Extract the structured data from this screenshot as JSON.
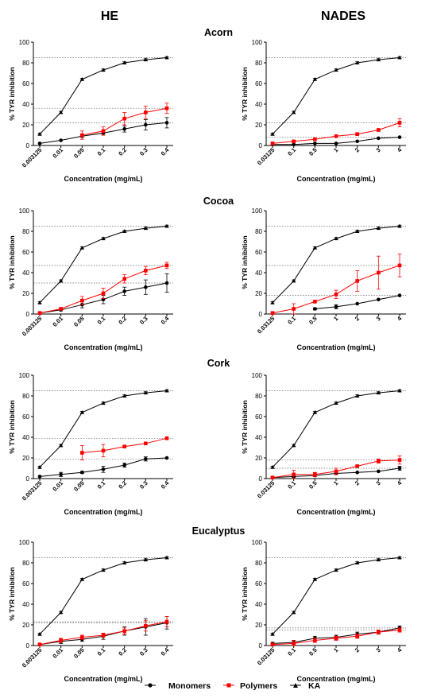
{
  "column_titles": [
    "HE",
    "NADES"
  ],
  "row_titles": [
    "Acorn",
    "Cocoa",
    "Cork",
    "Eucalyptus"
  ],
  "legend": {
    "position": "bottom",
    "items": [
      {
        "label": "Monomers",
        "color": "#000000",
        "marker": "circle"
      },
      {
        "label": "Polymers",
        "color": "#ff0000",
        "marker": "square"
      },
      {
        "label": "KA",
        "color": "#000000",
        "marker": "triangle"
      }
    ]
  },
  "chart_data": [
    {
      "type": "line",
      "panel": "HE",
      "row": "Acorn",
      "xlabel": "Concentration (mg/mL)",
      "ylabel": "% TYR inhibition",
      "ylim": [
        0,
        100
      ],
      "yticks": [
        0,
        20,
        40,
        60,
        80,
        100
      ],
      "categories": [
        "0.003125",
        "0.01",
        "0.05",
        "0.1",
        "0.2",
        "0.3",
        "0.4"
      ],
      "series": [
        {
          "name": "Monomers",
          "color": "#000000",
          "marker": "circle",
          "values": [
            2,
            5,
            9,
            12,
            16,
            20,
            22
          ],
          "errors": [
            0,
            0,
            1,
            2,
            3,
            5,
            5
          ]
        },
        {
          "name": "Polymers",
          "color": "#ff0000",
          "marker": "square",
          "values": [
            null,
            null,
            10,
            14,
            26,
            32,
            36
          ],
          "errors": [
            null,
            null,
            4,
            4,
            6,
            6,
            5
          ]
        },
        {
          "name": "KA",
          "color": "#000000",
          "marker": "triangle",
          "values": [
            11,
            32,
            64,
            73,
            80,
            83,
            85
          ],
          "errors": [
            1,
            1,
            1,
            1,
            1,
            1,
            1
          ]
        }
      ],
      "reference_lines": [
        85,
        36,
        22
      ]
    },
    {
      "type": "line",
      "panel": "NADES",
      "row": "Acorn",
      "xlabel": "Concentration (mg/mL)",
      "ylabel": "% TYR inhibition",
      "ylim": [
        0,
        100
      ],
      "yticks": [
        0,
        20,
        40,
        60,
        80,
        100
      ],
      "categories": [
        "0.03125",
        "0.1",
        "0.5",
        "1",
        "2",
        "3",
        "4"
      ],
      "series": [
        {
          "name": "Monomers",
          "color": "#000000",
          "marker": "circle",
          "values": [
            1,
            1,
            2,
            2,
            4,
            7,
            8
          ],
          "errors": [
            0,
            0,
            0,
            0,
            0,
            0,
            0
          ]
        },
        {
          "name": "Polymers",
          "color": "#ff0000",
          "marker": "square",
          "values": [
            2,
            4,
            6,
            9,
            11,
            15,
            22
          ],
          "errors": [
            1,
            1,
            0,
            0,
            1,
            1,
            4
          ]
        },
        {
          "name": "KA",
          "color": "#000000",
          "marker": "triangle",
          "values": [
            11,
            32,
            64,
            73,
            80,
            83,
            85
          ],
          "errors": [
            1,
            1,
            1,
            1,
            1,
            1,
            1
          ]
        }
      ],
      "reference_lines": [
        85,
        22,
        8
      ]
    },
    {
      "type": "line",
      "panel": "HE",
      "row": "Cocoa",
      "xlabel": "Concentration (mg/mL)",
      "ylabel": "% TYR inhibition",
      "ylim": [
        0,
        100
      ],
      "yticks": [
        0,
        20,
        40,
        60,
        80,
        100
      ],
      "categories": [
        "0.003125",
        "0.01",
        "0.05",
        "0.1",
        "0.2",
        "0.3",
        "0.4"
      ],
      "series": [
        {
          "name": "Monomers",
          "color": "#000000",
          "marker": "circle",
          "values": [
            1,
            4,
            9,
            14,
            22,
            26,
            30
          ],
          "errors": [
            0,
            1,
            3,
            4,
            4,
            7,
            9
          ]
        },
        {
          "name": "Polymers",
          "color": "#ff0000",
          "marker": "square",
          "values": [
            1,
            5,
            13,
            20,
            34,
            42,
            47
          ],
          "errors": [
            0,
            1,
            4,
            5,
            4,
            4,
            3
          ]
        },
        {
          "name": "KA",
          "color": "#000000",
          "marker": "triangle",
          "values": [
            11,
            32,
            64,
            73,
            80,
            83,
            85
          ],
          "errors": [
            1,
            1,
            1,
            1,
            1,
            1,
            1
          ]
        }
      ],
      "reference_lines": [
        85,
        47,
        30
      ]
    },
    {
      "type": "line",
      "panel": "NADES",
      "row": "Cocoa",
      "xlabel": "Concentration (mg/mL)",
      "ylabel": "% TYR inhibition",
      "ylim": [
        0,
        100
      ],
      "yticks": [
        0,
        20,
        40,
        60,
        80,
        100
      ],
      "categories": [
        "0.03125",
        "0.1",
        "0.5",
        "1",
        "2",
        "3",
        "4"
      ],
      "series": [
        {
          "name": "Monomers",
          "color": "#000000",
          "marker": "circle",
          "values": [
            null,
            null,
            5,
            7,
            10,
            14,
            18
          ],
          "errors": [
            null,
            null,
            1,
            2,
            0,
            0,
            0
          ]
        },
        {
          "name": "Polymers",
          "color": "#ff0000",
          "marker": "square",
          "values": [
            1,
            5,
            12,
            19,
            32,
            40,
            47
          ],
          "errors": [
            1,
            5,
            1,
            4,
            10,
            16,
            11
          ]
        },
        {
          "name": "KA",
          "color": "#000000",
          "marker": "triangle",
          "values": [
            11,
            32,
            64,
            73,
            80,
            83,
            85
          ],
          "errors": [
            1,
            1,
            1,
            1,
            1,
            1,
            1
          ]
        }
      ],
      "reference_lines": [
        85,
        47,
        18
      ]
    },
    {
      "type": "line",
      "panel": "HE",
      "row": "Cork",
      "xlabel": "Concentration (mg/mL)",
      "ylabel": "% TYR inhibition",
      "ylim": [
        0,
        100
      ],
      "yticks": [
        0,
        20,
        40,
        60,
        80,
        100
      ],
      "categories": [
        "0.003125",
        "0.01",
        "0.05",
        "0.1",
        "0.2",
        "0.3",
        "0.4"
      ],
      "series": [
        {
          "name": "Monomers",
          "color": "#000000",
          "marker": "circle",
          "values": [
            2,
            4,
            6,
            9,
            13,
            19,
            20
          ],
          "errors": [
            0,
            2,
            1,
            3,
            2,
            2,
            0
          ]
        },
        {
          "name": "Polymers",
          "color": "#ff0000",
          "marker": "square",
          "values": [
            null,
            null,
            25,
            27,
            31,
            34,
            39
          ],
          "errors": [
            null,
            null,
            7,
            6,
            1,
            0,
            0
          ]
        },
        {
          "name": "KA",
          "color": "#000000",
          "marker": "triangle",
          "values": [
            11,
            32,
            64,
            73,
            80,
            83,
            85
          ],
          "errors": [
            1,
            1,
            1,
            1,
            1,
            1,
            1
          ]
        }
      ],
      "reference_lines": [
        85,
        39,
        19
      ]
    },
    {
      "type": "line",
      "panel": "NADES",
      "row": "Cork",
      "xlabel": "Concentration (mg/mL)",
      "ylabel": "% TYR inhibition",
      "ylim": [
        0,
        100
      ],
      "yticks": [
        0,
        20,
        40,
        60,
        80,
        100
      ],
      "categories": [
        "0.03125",
        "0.1",
        "0.5",
        "1",
        "2",
        "3",
        "4"
      ],
      "series": [
        {
          "name": "Monomers",
          "color": "#000000",
          "marker": "circle",
          "values": [
            1,
            2,
            3,
            5,
            6,
            7,
            10
          ],
          "errors": [
            0,
            1,
            1,
            1,
            0,
            0,
            2
          ]
        },
        {
          "name": "Polymers",
          "color": "#ff0000",
          "marker": "square",
          "values": [
            1,
            4,
            4,
            7,
            12,
            17,
            18
          ],
          "errors": [
            1,
            4,
            2,
            3,
            1,
            2,
            4
          ]
        },
        {
          "name": "KA",
          "color": "#000000",
          "marker": "triangle",
          "values": [
            11,
            32,
            64,
            73,
            80,
            83,
            85
          ],
          "errors": [
            1,
            1,
            1,
            1,
            1,
            1,
            1
          ]
        }
      ],
      "reference_lines": [
        85,
        18,
        10
      ]
    },
    {
      "type": "line",
      "panel": "HE",
      "row": "Eucalyptus",
      "xlabel": "Concentration (mg/mL)",
      "ylabel": "% TYR inhibition",
      "ylim": [
        0,
        100
      ],
      "yticks": [
        0,
        20,
        40,
        60,
        80,
        100
      ],
      "categories": [
        "0.003125",
        "0.01",
        "0.05",
        "0.1",
        "0.2",
        "0.3",
        "0.4"
      ],
      "series": [
        {
          "name": "Monomers",
          "color": "#000000",
          "marker": "circle",
          "values": [
            1,
            4,
            6,
            9,
            14,
            18,
            22
          ],
          "errors": [
            1,
            2,
            2,
            3,
            4,
            8,
            6
          ]
        },
        {
          "name": "Polymers",
          "color": "#ff0000",
          "marker": "square",
          "values": [
            1,
            5,
            8,
            10,
            14,
            19,
            23
          ],
          "errors": [
            1,
            2,
            2,
            2,
            3,
            5,
            5
          ]
        },
        {
          "name": "KA",
          "color": "#000000",
          "marker": "triangle",
          "values": [
            11,
            32,
            64,
            73,
            80,
            83,
            85
          ],
          "errors": [
            1,
            1,
            1,
            1,
            1,
            1,
            1
          ]
        }
      ],
      "reference_lines": [
        85,
        23,
        22
      ]
    },
    {
      "type": "line",
      "panel": "NADES",
      "row": "Eucalyptus",
      "xlabel": "Concentration (mg/mL)",
      "ylabel": "% TYR inhibition",
      "ylim": [
        0,
        100
      ],
      "yticks": [
        0,
        20,
        40,
        60,
        80,
        100
      ],
      "categories": [
        "0.03125",
        "0.1",
        "0.5",
        "1",
        "2",
        "3",
        "4"
      ],
      "series": [
        {
          "name": "Monomers",
          "color": "#000000",
          "marker": "circle",
          "values": [
            2,
            3,
            7,
            8,
            11,
            13,
            17
          ],
          "errors": [
            1,
            2,
            2,
            2,
            2,
            2,
            2
          ]
        },
        {
          "name": "Polymers",
          "color": "#ff0000",
          "marker": "square",
          "values": [
            1,
            2,
            5,
            7,
            9,
            13,
            15
          ],
          "errors": [
            1,
            3,
            2,
            2,
            2,
            2,
            2
          ]
        },
        {
          "name": "KA",
          "color": "#000000",
          "marker": "triangle",
          "values": [
            11,
            32,
            64,
            73,
            80,
            83,
            85
          ],
          "errors": [
            1,
            1,
            1,
            1,
            1,
            1,
            1
          ]
        }
      ],
      "reference_lines": [
        85,
        17,
        15
      ]
    }
  ]
}
